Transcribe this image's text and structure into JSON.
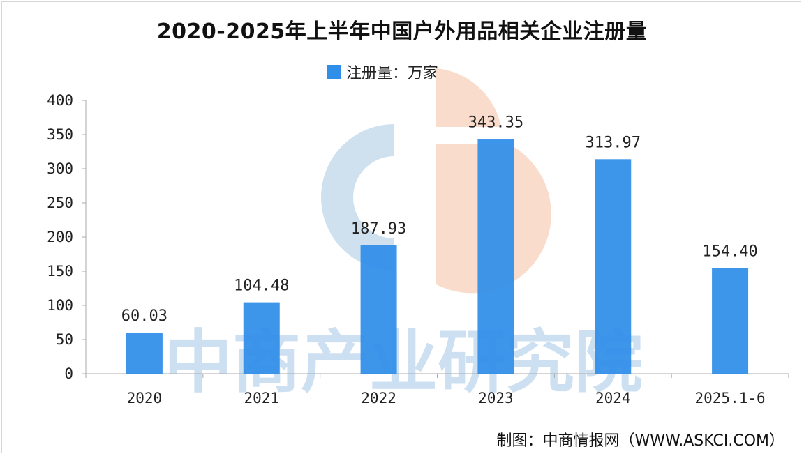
{
  "chart_data": {
    "type": "bar",
    "title": "2020-2025年上半年中国户外用品相关企业注册量",
    "legend": "注册量：万家",
    "legend_position": "top",
    "categories": [
      "2020",
      "2021",
      "2022",
      "2023",
      "2024",
      "2025.1-6"
    ],
    "series": [
      {
        "name": "注册量：万家",
        "values": [
          60.03,
          104.48,
          187.93,
          343.35,
          313.97,
          154.4
        ],
        "labels": [
          "60.03",
          "104.48",
          "187.93",
          "343.35",
          "313.97",
          "154.40"
        ]
      }
    ],
    "ylim": [
      0,
      400
    ],
    "yticks": [
      "0",
      "50",
      "100",
      "150",
      "200",
      "250",
      "300",
      "350",
      "400"
    ],
    "ytick_values": [
      0,
      50,
      100,
      150,
      200,
      250,
      300,
      350,
      400
    ],
    "grid": false,
    "xlabel": "",
    "ylabel": ""
  },
  "watermark": {
    "text": "中商产业研究院"
  },
  "source": "制图：中商情报网（WWW.ASKCI.COM）",
  "colors": {
    "bar": "#2f8ee8",
    "logo_blue": "#cfe0ef",
    "logo_orange": "#f9dccb",
    "watermark_text": "#bcd6ee",
    "axis": "#aaaaaa"
  }
}
